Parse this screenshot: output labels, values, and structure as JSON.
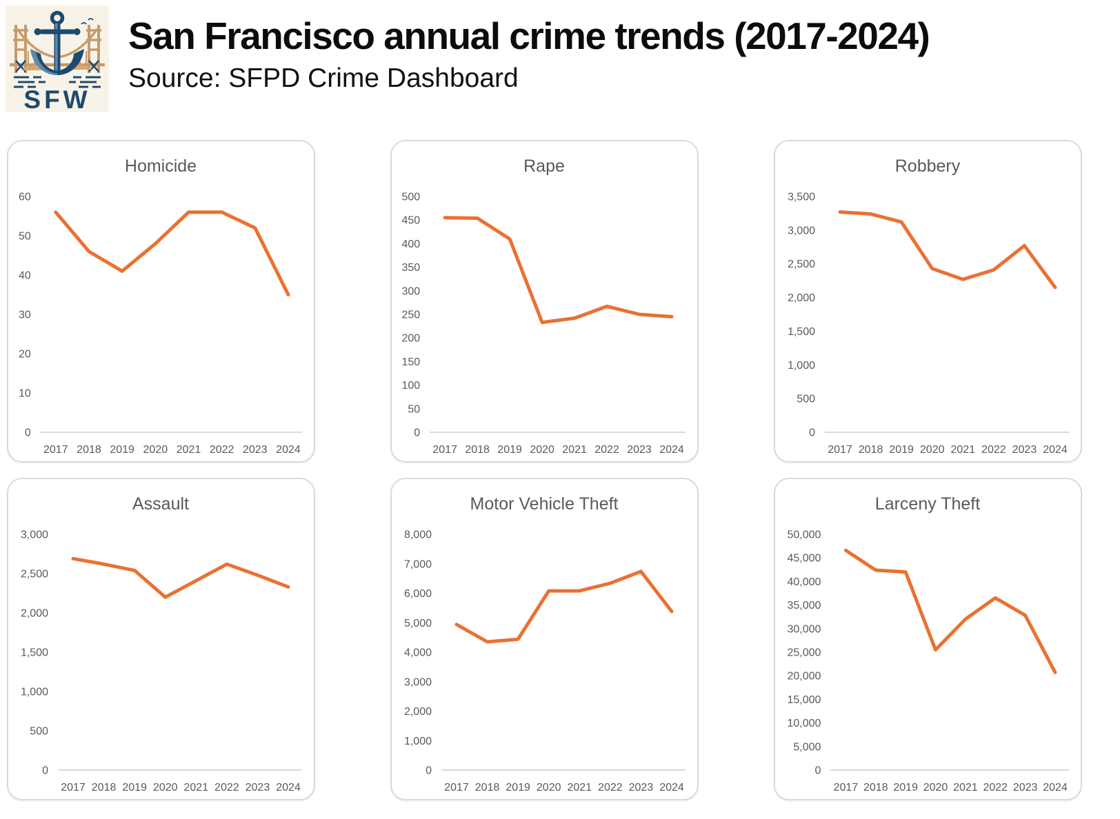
{
  "header": {
    "title": "San Francisco annual crime trends (2017-2024)",
    "subtitle": "Source: SFPD Crime Dashboard",
    "logo_text": "SFW"
  },
  "colors": {
    "line": "#E97132",
    "axis_line": "#D9D9D9",
    "tick_label": "#595959",
    "chart_title": "#595959",
    "card_border": "#D9D9D9",
    "logo_navy": "#1E4A6D",
    "logo_light_blue": "#5E89AE",
    "logo_tan": "#C79A6B",
    "logo_cream": "#F8F3E8"
  },
  "chart_data": [
    {
      "type": "line",
      "title": "Homicide",
      "categories": [
        "2017",
        "2018",
        "2019",
        "2020",
        "2021",
        "2022",
        "2023",
        "2024"
      ],
      "values": [
        56,
        46,
        41,
        48,
        56,
        56,
        52,
        35
      ],
      "ylim": [
        0,
        60
      ],
      "ystep": 10,
      "grid": false,
      "legend": "none",
      "line_color": "#E97132"
    },
    {
      "type": "line",
      "title": "Rape",
      "categories": [
        "2017",
        "2018",
        "2019",
        "2020",
        "2021",
        "2022",
        "2023",
        "2024"
      ],
      "values": [
        455,
        454,
        410,
        233,
        242,
        267,
        250,
        245
      ],
      "ylim": [
        0,
        500
      ],
      "ystep": 50,
      "grid": false,
      "legend": "none",
      "line_color": "#E97132"
    },
    {
      "type": "line",
      "title": "Robbery",
      "categories": [
        "2017",
        "2018",
        "2019",
        "2020",
        "2021",
        "2022",
        "2023",
        "2024"
      ],
      "values": [
        3270,
        3240,
        3120,
        2430,
        2270,
        2410,
        2770,
        2150
      ],
      "ylim": [
        0,
        3500
      ],
      "ystep": 500,
      "grid": false,
      "legend": "none",
      "line_color": "#E97132"
    },
    {
      "type": "line",
      "title": "Assault",
      "categories": [
        "2017",
        "2018",
        "2019",
        "2020",
        "2021",
        "2022",
        "2023",
        "2024"
      ],
      "values": [
        2690,
        2620,
        2540,
        2200,
        2410,
        2620,
        2480,
        2330
      ],
      "ylim": [
        0,
        3000
      ],
      "ystep": 500,
      "grid": false,
      "legend": "none",
      "line_color": "#E97132"
    },
    {
      "type": "line",
      "title": "Motor Vehicle Theft",
      "categories": [
        "2017",
        "2018",
        "2019",
        "2020",
        "2021",
        "2022",
        "2023",
        "2024"
      ],
      "values": [
        4940,
        4350,
        4440,
        6080,
        6080,
        6340,
        6740,
        5380
      ],
      "ylim": [
        0,
        8000
      ],
      "ystep": 1000,
      "grid": false,
      "legend": "none",
      "line_color": "#E97132"
    },
    {
      "type": "line",
      "title": "Larceny Theft",
      "categories": [
        "2017",
        "2018",
        "2019",
        "2020",
        "2021",
        "2022",
        "2023",
        "2024"
      ],
      "values": [
        46600,
        42400,
        42000,
        25500,
        32000,
        36500,
        32800,
        20700
      ],
      "ylim": [
        0,
        50000
      ],
      "ystep": 5000,
      "grid": false,
      "legend": "none",
      "line_color": "#E97132"
    }
  ]
}
